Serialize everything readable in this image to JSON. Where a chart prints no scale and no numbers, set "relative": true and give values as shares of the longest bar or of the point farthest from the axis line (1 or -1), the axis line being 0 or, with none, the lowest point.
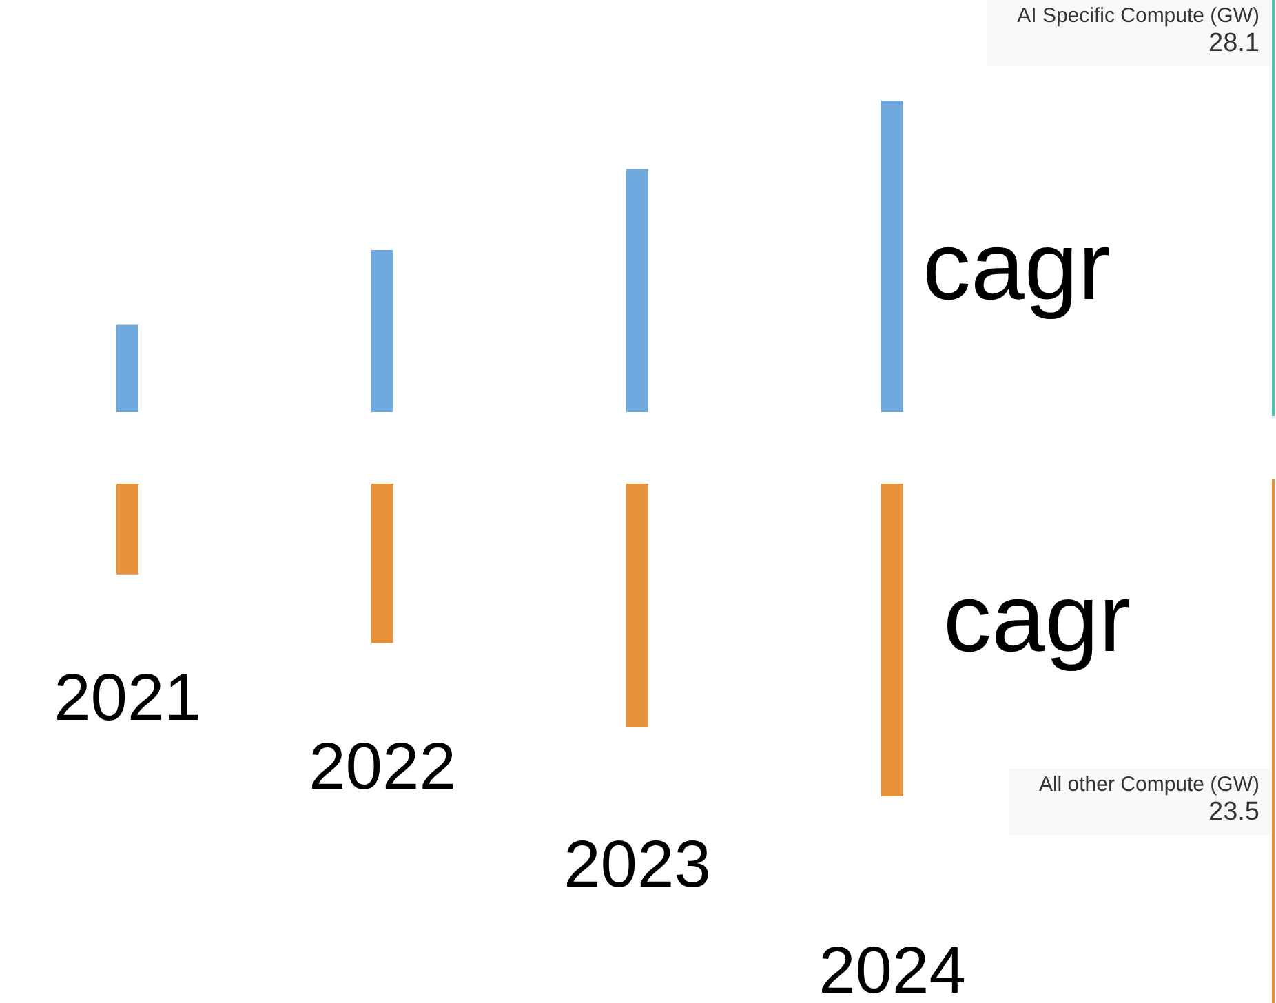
{
  "chart_data": [
    {
      "type": "bar",
      "categories": [
        null,
        null,
        null,
        null
      ],
      "relative": true,
      "series": [
        {
          "color": "#6fa8dc",
          "values": [
            0.28,
            0.52,
            0.78,
            1
          ]
        }
      ],
      "annotations": [
        "AI Specific Compute (GW)",
        "28.1",
        "cagr"
      ]
    },
    {
      "type": "bar",
      "categories": [
        "2021",
        "2022",
        "2023",
        "2024"
      ],
      "relative": true,
      "series": [
        {
          "color": "#e69138",
          "values": [
            -0.29,
            -0.51,
            -0.78,
            -1
          ]
        }
      ],
      "annotations": [
        "All other Compute (GW)",
        "23.5",
        "cagr"
      ]
    }
  ]
}
